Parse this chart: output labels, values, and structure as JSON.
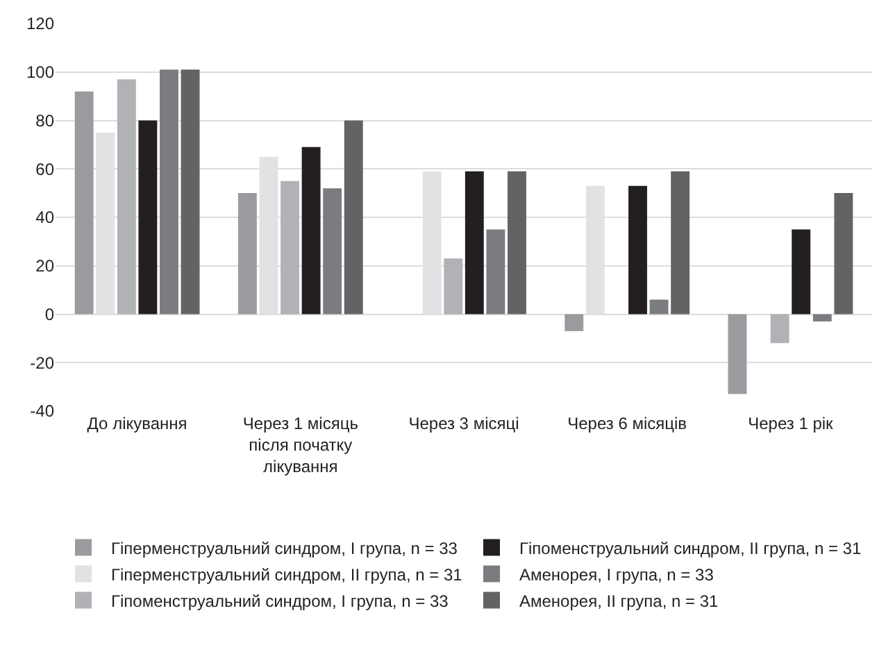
{
  "chart_data": {
    "type": "bar",
    "categories": [
      "До лікування",
      "Через 1 місяць після початку лікування",
      "Через 3 місяці",
      "Через 6 місяців",
      "Через 1 рік"
    ],
    "series": [
      {
        "name": "Гіперменструальний синдром, I група, n = 33",
        "color": "#9a9b9e",
        "values": [
          92,
          50,
          0,
          -7,
          -33
        ]
      },
      {
        "name": "Гіперменструальний синдром, II група, n = 31",
        "color": "#e1e2e4",
        "values": [
          75,
          65,
          59,
          53,
          0
        ]
      },
      {
        "name": "Гіпоменструальний синдром, I група, n = 33",
        "color": "#b1b2b5",
        "values": [
          97,
          55,
          23,
          0,
          -12
        ]
      },
      {
        "name": "Гіпоменструальний синдром, II група, n = 31",
        "color": "#231f20",
        "values": [
          80,
          69,
          59,
          53,
          35
        ]
      },
      {
        "name": "Аменорея, I група, n = 33",
        "color": "#7b7c7f",
        "values": [
          101,
          52,
          35,
          6,
          -3
        ]
      },
      {
        "name": "Аменорея, II група, n = 31",
        "color": "#626365",
        "values": [
          101,
          80,
          59,
          59,
          50
        ]
      }
    ],
    "ylim": [
      -40,
      120
    ],
    "yticks": [
      -40,
      -20,
      0,
      20,
      40,
      60,
      80,
      100,
      120
    ],
    "grid": "y",
    "legend": "bottom"
  }
}
